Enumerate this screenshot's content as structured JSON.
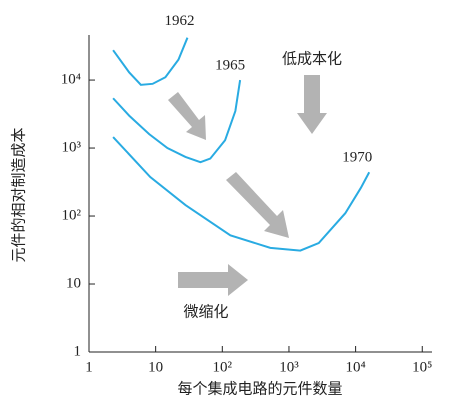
{
  "chart_data": {
    "type": "line",
    "xlabel": "每个集成电路的元件数量",
    "ylabel": "元件的相对制造成本",
    "xscale": "log",
    "yscale": "log",
    "xlim": [
      1,
      140000
    ],
    "ylim": [
      1,
      46000
    ],
    "xticks": [
      1,
      10,
      {
        "value": 100,
        "label": "10²"
      },
      {
        "value": 1000,
        "label": "10³"
      },
      {
        "value": 10000,
        "label": "10⁴"
      },
      {
        "value": 100000,
        "label": "10⁵"
      }
    ],
    "yticks": [
      1,
      10,
      {
        "value": 100,
        "label": "10²"
      },
      {
        "value": 1000,
        "label": "10³"
      },
      {
        "value": 10000,
        "label": "10⁴"
      }
    ],
    "series": [
      {
        "name": "1962",
        "color": "#29abe2",
        "x": [
          2.3,
          4,
          6,
          9,
          14,
          22,
          30
        ],
        "values": [
          27500,
          13000,
          8500,
          8800,
          11000,
          20000,
          42000
        ]
      },
      {
        "name": "1965",
        "color": "#29abe2",
        "x": [
          2.3,
          4,
          8,
          15,
          28,
          47,
          66,
          110,
          157,
          185
        ],
        "values": [
          5400,
          3000,
          1600,
          1000,
          740,
          620,
          700,
          1300,
          3500,
          10000
        ]
      },
      {
        "name": "1970",
        "color": "#29abe2",
        "x": [
          2.3,
          8.3,
          28,
          132,
          525,
          1480,
          2800,
          7000,
          12000,
          16000
        ],
        "values": [
          1450,
          375,
          145,
          52,
          34,
          31,
          40,
          110,
          260,
          440
        ]
      }
    ],
    "annotations": [
      "低成本化",
      "微缩化"
    ]
  }
}
